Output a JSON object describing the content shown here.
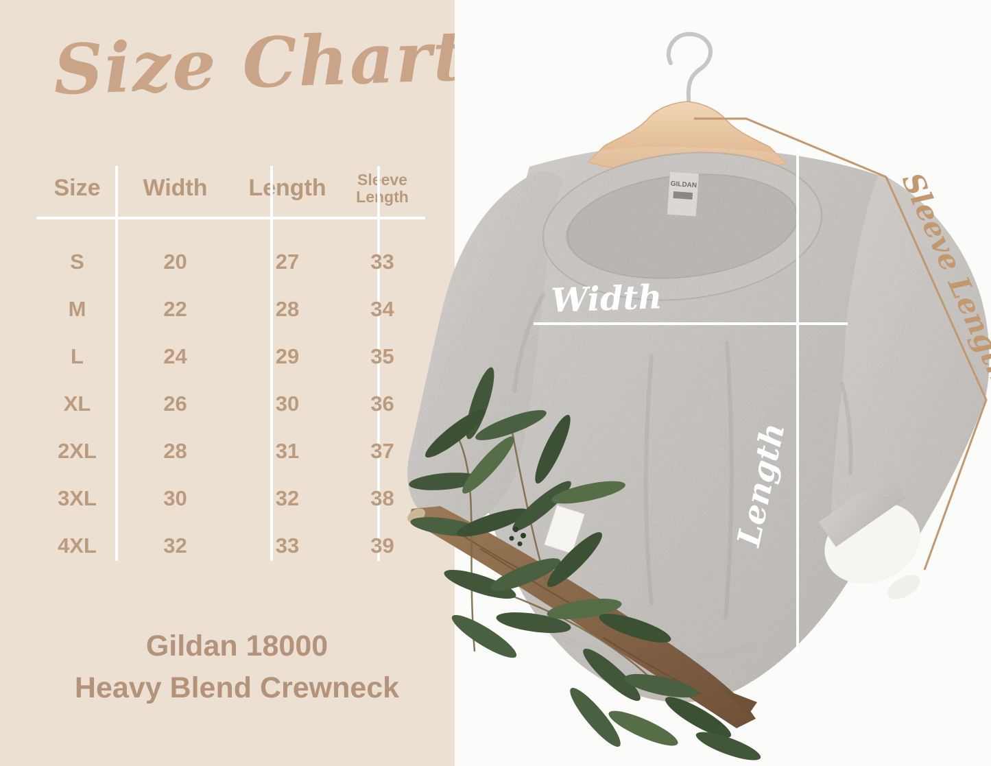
{
  "panel": {
    "title": "Size Chart",
    "footer_line1": "Gildan 18000",
    "footer_line2": "Heavy Blend Crewneck",
    "background": "#ece0d3",
    "title_color": "#c9a487",
    "text_color": "#bb9b7d",
    "divider_color": "#ffffff"
  },
  "chart_data": {
    "type": "table",
    "title": "Size Chart",
    "columns": [
      "Size",
      "Width",
      "Length",
      "Sleeve Length"
    ],
    "rows": [
      [
        "S",
        "20",
        "27",
        "33"
      ],
      [
        "M",
        "22",
        "28",
        "34"
      ],
      [
        "L",
        "24",
        "29",
        "35"
      ],
      [
        "XL",
        "26",
        "30",
        "36"
      ],
      [
        "2XL",
        "28",
        "31",
        "37"
      ],
      [
        "3XL",
        "30",
        "32",
        "38"
      ],
      [
        "4XL",
        "32",
        "33",
        "39"
      ]
    ],
    "caption": "Gildan 18000 Heavy Blend Crewneck",
    "annotations": [
      "Width",
      "Length",
      "Sleeve Length"
    ]
  },
  "photo": {
    "background": "#fbfbfa",
    "labels": {
      "width": "Width",
      "length": "Length",
      "sleeve_length": "Sleeve Length"
    },
    "garment_tag": "GILDAN",
    "colors": {
      "measure_line_white": "#ffffff",
      "measure_line_tan": "#c2996f",
      "sweatshirt_gray": "#b9b6b2",
      "hanger_wood": "#e9c7a4",
      "leaf_green": "#465c3a",
      "branch_brown": "#8a6748"
    }
  }
}
